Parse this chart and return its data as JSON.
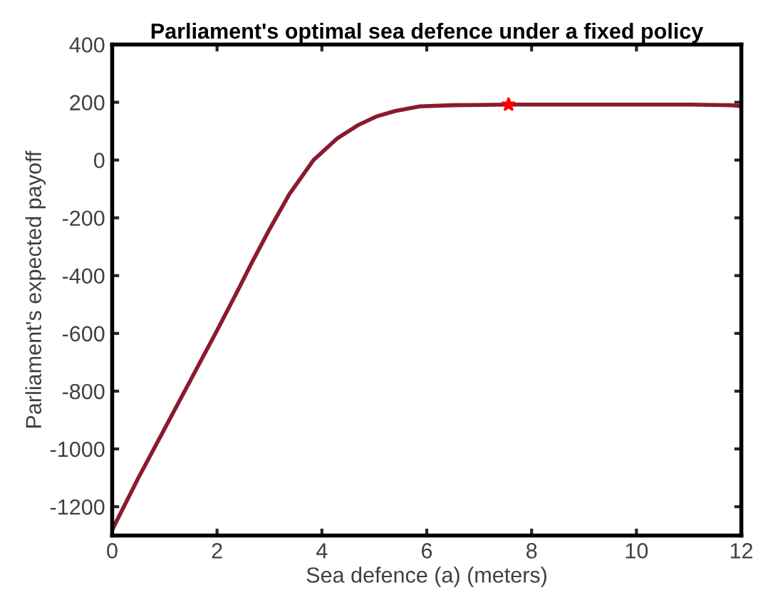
{
  "chart_data": {
    "type": "line",
    "title": "Parliament's optimal sea defence under a fixed policy",
    "xlabel": "Sea defence (a) (meters)",
    "ylabel": "Parliament's expected payoff",
    "xlim": [
      0,
      12
    ],
    "ylim": [
      -1300,
      400
    ],
    "xticks": [
      0,
      2,
      4,
      6,
      8,
      10,
      12
    ],
    "yticks": [
      -1200,
      -1000,
      -800,
      -600,
      -400,
      -200,
      0,
      200,
      400
    ],
    "grid": false,
    "series": [
      {
        "color": "#8b1a2e",
        "x": [
          0,
          0.5,
          1,
          1.5,
          2,
          2.4,
          2.65,
          3,
          3.38,
          3.84,
          4.3,
          4.7,
          5.04,
          5.4,
          5.87,
          6.5,
          7,
          7.56,
          8,
          9,
          10,
          11,
          11.8,
          12
        ],
        "values": [
          -1280,
          -1100,
          -930,
          -760,
          -590,
          -450,
          -360,
          -240,
          -118,
          0,
          76,
          122,
          151,
          170,
          186,
          190,
          191,
          192,
          192,
          192,
          192,
          192,
          190,
          186
        ]
      },
      {
        "type": "scatter",
        "color": "#ff0000",
        "marker": "star",
        "x": [
          7.56
        ],
        "values": [
          192
        ]
      }
    ]
  }
}
